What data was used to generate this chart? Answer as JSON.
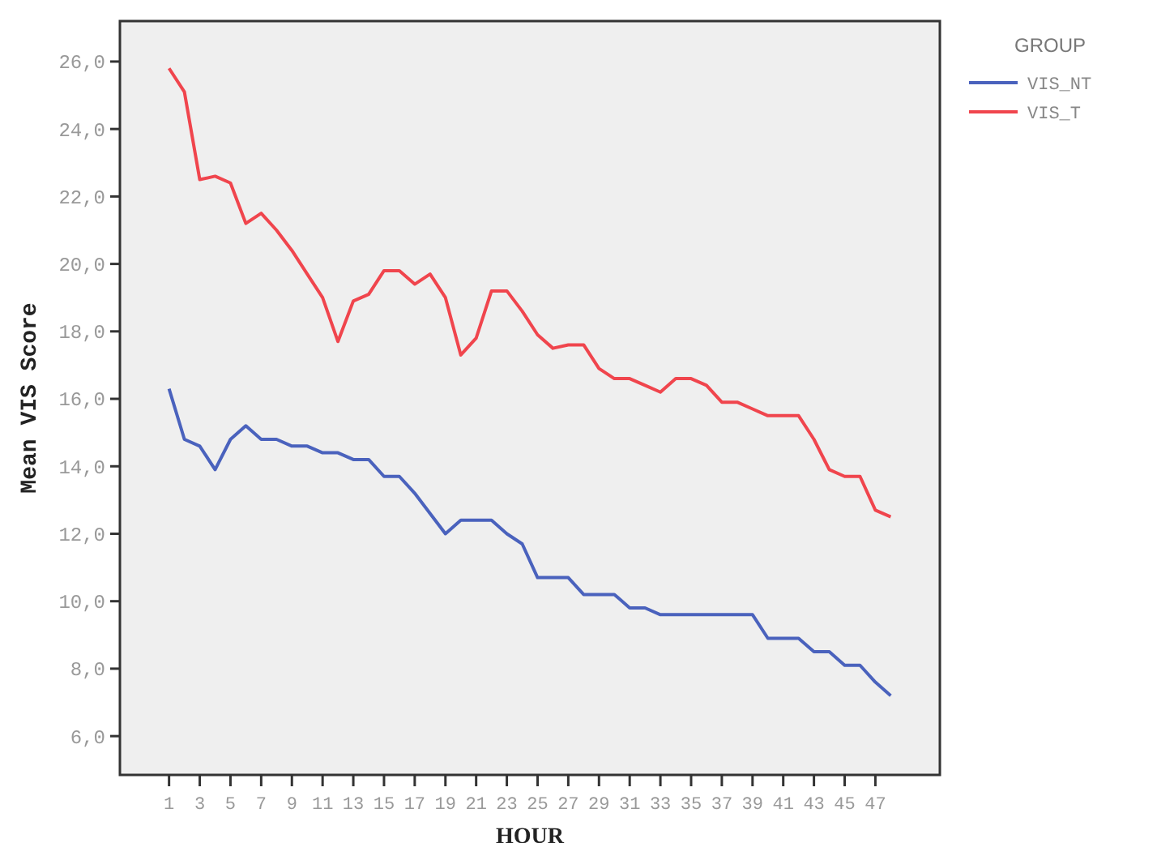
{
  "chart_data": {
    "type": "line",
    "xlabel": "HOUR",
    "ylabel": "Mean VIS Score",
    "legend_title": "GROUP",
    "legend": "top right",
    "grid": false,
    "x": [
      1,
      2,
      3,
      4,
      5,
      6,
      7,
      8,
      9,
      10,
      11,
      12,
      13,
      14,
      15,
      16,
      17,
      18,
      19,
      20,
      21,
      22,
      23,
      24,
      25,
      26,
      27,
      28,
      29,
      30,
      31,
      32,
      33,
      34,
      35,
      36,
      37,
      38,
      39,
      40,
      41,
      42,
      43,
      44,
      45,
      46,
      47,
      48
    ],
    "xlim": [
      -2.2,
      51.2
    ],
    "xticks": [
      1,
      3,
      5,
      7,
      9,
      11,
      13,
      15,
      17,
      19,
      21,
      23,
      25,
      27,
      29,
      31,
      33,
      35,
      37,
      39,
      41,
      43,
      45,
      47
    ],
    "ylim": [
      4.85,
      27.2
    ],
    "yticks": [
      {
        "value": 6,
        "label": "6,0"
      },
      {
        "value": 8,
        "label": "8,0"
      },
      {
        "value": 10,
        "label": "10,0"
      },
      {
        "value": 12,
        "label": "12,0"
      },
      {
        "value": 14,
        "label": "14,0"
      },
      {
        "value": 16,
        "label": "16,0"
      },
      {
        "value": 18,
        "label": "18,0"
      },
      {
        "value": 20,
        "label": "20,0"
      },
      {
        "value": 22,
        "label": "22,0"
      },
      {
        "value": 24,
        "label": "24,0"
      },
      {
        "value": 26,
        "label": "26,0"
      }
    ],
    "series": [
      {
        "name": "VIS_NT",
        "color": "#4a62bd",
        "values": [
          16.3,
          14.8,
          14.6,
          13.9,
          14.8,
          15.2,
          14.8,
          14.8,
          14.6,
          14.6,
          14.4,
          14.4,
          14.2,
          14.2,
          13.7,
          13.7,
          13.2,
          12.6,
          12.0,
          12.4,
          12.4,
          12.4,
          12.0,
          11.7,
          10.7,
          10.7,
          10.7,
          10.2,
          10.2,
          10.2,
          9.8,
          9.8,
          9.6,
          9.6,
          9.6,
          9.6,
          9.6,
          9.6,
          9.6,
          8.9,
          8.9,
          8.9,
          8.5,
          8.5,
          8.1,
          8.1,
          7.6,
          7.2
        ]
      },
      {
        "name": "VIS_T",
        "color": "#f0454d",
        "values": [
          25.8,
          25.1,
          22.5,
          22.6,
          22.4,
          21.2,
          21.5,
          21.0,
          20.4,
          19.7,
          19.0,
          17.7,
          18.9,
          19.1,
          19.8,
          19.8,
          19.4,
          19.7,
          19.0,
          17.3,
          17.8,
          19.2,
          19.2,
          18.6,
          17.9,
          17.5,
          17.6,
          17.6,
          16.9,
          16.6,
          16.6,
          16.4,
          16.2,
          16.6,
          16.6,
          16.4,
          15.9,
          15.9,
          15.7,
          15.5,
          15.5,
          15.5,
          14.8,
          13.9,
          13.7,
          13.7,
          12.7,
          12.5
        ]
      }
    ]
  }
}
